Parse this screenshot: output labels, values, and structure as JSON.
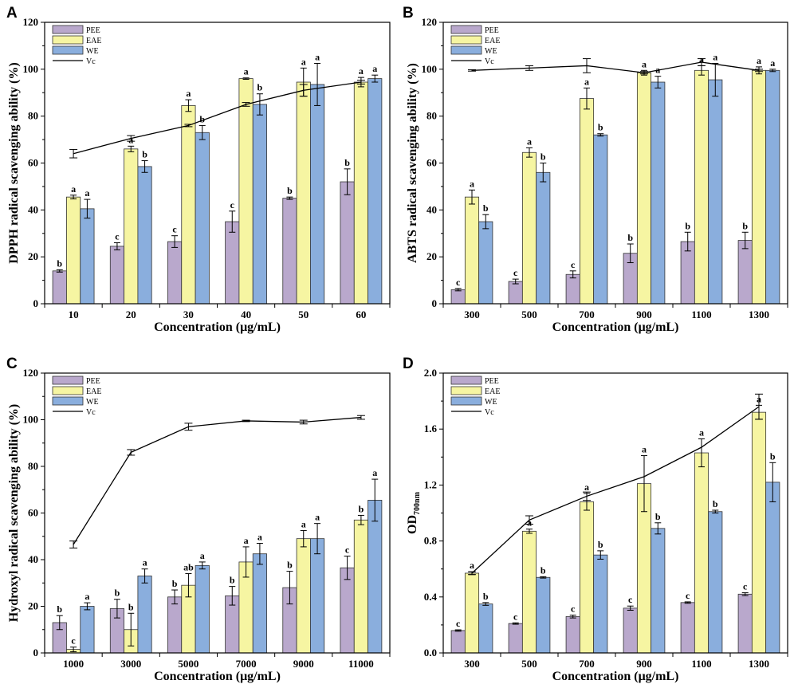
{
  "colors": {
    "PEE": "#b9a8cc",
    "EAE": "#f6f5a2",
    "WE": "#8aaedd",
    "Vc": "#000000",
    "bar_edge": "#333333"
  },
  "chart_data": [
    {
      "panel": "A",
      "type": "bar",
      "ylabel": "DPPH radical scavenging ability (%)",
      "xlabel": "Concentration (μg/mL)",
      "ylim": [
        0,
        120
      ],
      "yticks": [
        0,
        20,
        40,
        60,
        80,
        100,
        120
      ],
      "categories": [
        "10",
        "20",
        "30",
        "40",
        "50",
        "60"
      ],
      "series": [
        {
          "name": "PEE",
          "values": [
            14,
            24.5,
            26.5,
            35,
            45,
            52
          ],
          "errors": [
            0.5,
            1.5,
            2.5,
            4.5,
            0.5,
            5.5
          ],
          "labels": [
            "b",
            "c",
            "c",
            "c",
            "b",
            "b"
          ]
        },
        {
          "name": "EAE",
          "values": [
            45.5,
            66,
            84.5,
            96,
            94.5,
            94.5
          ],
          "errors": [
            0.8,
            1.2,
            2.5,
            0.3,
            6,
            2
          ],
          "labels": [
            "a",
            "a",
            "a",
            "a",
            "a",
            "a"
          ]
        },
        {
          "name": "WE",
          "values": [
            40.5,
            58.5,
            73,
            85,
            93.5,
            96
          ],
          "errors": [
            4,
            2.5,
            3,
            4.5,
            9,
            1.5
          ],
          "labels": [
            "a",
            "b",
            "b",
            "b",
            "a",
            "a"
          ]
        }
      ],
      "line": {
        "name": "Vc",
        "values": [
          64,
          70.5,
          76,
          85,
          91,
          94.5
        ],
        "errors": [
          1.8,
          1.2,
          0.5,
          0.8,
          2.5,
          0.8
        ]
      },
      "legend": [
        "PEE",
        "EAE",
        "WE",
        "Vc"
      ]
    },
    {
      "panel": "B",
      "type": "bar",
      "ylabel": "ABTS radical scavenging ability (%)",
      "xlabel": "Concentration (μg/mL)",
      "ylim": [
        0,
        120
      ],
      "yticks": [
        0,
        20,
        40,
        60,
        80,
        100,
        120
      ],
      "categories": [
        "300",
        "500",
        "700",
        "900",
        "1100",
        "1300"
      ],
      "series": [
        {
          "name": "PEE",
          "values": [
            6,
            9.5,
            12.5,
            21.5,
            26.5,
            27
          ],
          "errors": [
            0.5,
            1,
            1.5,
            4,
            4,
            3.5
          ],
          "labels": [
            "c",
            "c",
            "c",
            "b",
            "b",
            "b"
          ]
        },
        {
          "name": "EAE",
          "values": [
            45.5,
            64.5,
            87.5,
            98.5,
            99.5,
            99.5
          ],
          "errors": [
            3,
            2,
            4.5,
            1,
            2,
            1.5
          ],
          "labels": [
            "a",
            "a",
            "a",
            "a",
            "a",
            "a"
          ]
        },
        {
          "name": "WE",
          "values": [
            35,
            56,
            72,
            94.5,
            95.5,
            99.5
          ],
          "errors": [
            3,
            4,
            0.5,
            2.5,
            7,
            0.5
          ],
          "labels": [
            "b",
            "b",
            "b",
            "a",
            "a",
            "a"
          ]
        }
      ],
      "line": {
        "name": "Vc",
        "values": [
          99.5,
          100.5,
          101.5,
          98.5,
          103,
          99.5
        ],
        "errors": [
          0.3,
          1,
          3,
          0.5,
          1.5,
          0.5
        ]
      },
      "legend": [
        "PEE",
        "EAE",
        "WE",
        "Vc"
      ]
    },
    {
      "panel": "C",
      "type": "bar",
      "ylabel": "Hydroxyl radical scavenging ability (%)",
      "xlabel": "Concentration (μg/mL)",
      "ylim": [
        0,
        120
      ],
      "yticks": [
        0,
        20,
        40,
        60,
        80,
        100,
        120
      ],
      "categories": [
        "1000",
        "3000",
        "5000",
        "7000",
        "9000",
        "11000"
      ],
      "series": [
        {
          "name": "PEE",
          "values": [
            13,
            19,
            24,
            24.5,
            28,
            36.5
          ],
          "errors": [
            3,
            4,
            3,
            4,
            7,
            5
          ],
          "labels": [
            "b",
            "b",
            "b",
            "b",
            "b",
            "c"
          ]
        },
        {
          "name": "EAE",
          "values": [
            1.5,
            10,
            29,
            39,
            49,
            57
          ],
          "errors": [
            1,
            7,
            5,
            6.5,
            3.5,
            2
          ],
          "labels": [
            "c",
            "b",
            "ab",
            "a",
            "a",
            "b"
          ]
        },
        {
          "name": "WE",
          "values": [
            20,
            33,
            37.5,
            42.5,
            49,
            65.5
          ],
          "errors": [
            1.5,
            3,
            1.5,
            4.5,
            6.5,
            9
          ],
          "labels": [
            "a",
            "a",
            "a",
            "a",
            "a",
            "a"
          ]
        }
      ],
      "line": {
        "name": "Vc",
        "values": [
          46.5,
          86,
          97,
          99.5,
          99,
          101
        ],
        "errors": [
          1.5,
          1.2,
          1.5,
          0.3,
          0.8,
          0.8
        ]
      },
      "legend": [
        "PEE",
        "EAE",
        "WE",
        "Vc"
      ]
    },
    {
      "panel": "D",
      "type": "bar",
      "ylabel": "OD",
      "ylabel_sub": "700nm",
      "xlabel": "Concentration (μg/mL)",
      "ylim": [
        0,
        2.0
      ],
      "yticks": [
        0.0,
        0.4,
        0.8,
        1.2,
        1.6,
        2.0
      ],
      "categories": [
        "300",
        "500",
        "700",
        "900",
        "1100",
        "1300"
      ],
      "series": [
        {
          "name": "PEE",
          "values": [
            0.16,
            0.21,
            0.26,
            0.32,
            0.36,
            0.42
          ],
          "errors": [
            0.005,
            0.005,
            0.01,
            0.015,
            0.005,
            0.01
          ],
          "labels": [
            "c",
            "c",
            "c",
            "c",
            "c",
            "c"
          ]
        },
        {
          "name": "EAE",
          "values": [
            0.57,
            0.87,
            1.08,
            1.21,
            1.43,
            1.72
          ],
          "errors": [
            0.01,
            0.015,
            0.06,
            0.2,
            0.1,
            0.05
          ],
          "labels": [
            "a",
            "a",
            "a",
            "a",
            "a",
            "a"
          ]
        },
        {
          "name": "WE",
          "values": [
            0.35,
            0.54,
            0.7,
            0.89,
            1.01,
            1.22
          ],
          "errors": [
            0.01,
            0.005,
            0.03,
            0.04,
            0.01,
            0.14
          ],
          "labels": [
            "b",
            "b",
            "b",
            "b",
            "b",
            "b"
          ]
        }
      ],
      "line": {
        "name": "Vc",
        "values": [
          0.57,
          0.95,
          1.12,
          1.26,
          1.47,
          1.76
        ],
        "errors": [
          0.01,
          0.03,
          0.03,
          0.0,
          0.0,
          0.09
        ]
      },
      "legend": [
        "PEE",
        "EAE",
        "WE",
        "Vc"
      ]
    }
  ]
}
